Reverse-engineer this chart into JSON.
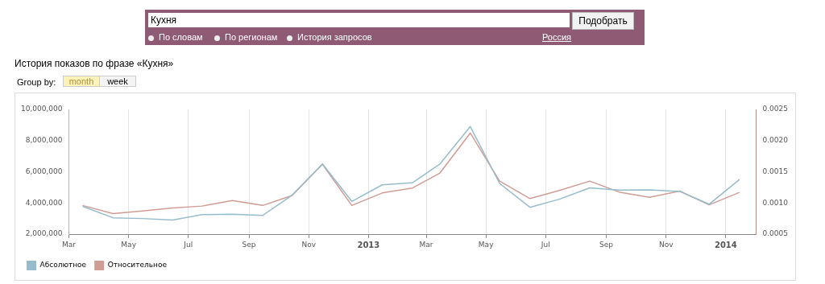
{
  "chart_data": {
    "type": "line",
    "title": "История показов по фразе «Кухня»",
    "annotations": [
      "Кухня",
      "Подобрать",
      "По словам",
      "По регионам",
      "История запросов",
      "Россия",
      "Group by:",
      "month",
      "week"
    ],
    "x": [
      "2012-03-15",
      "2012-04-15",
      "2012-05-15",
      "2012-06-15",
      "2012-07-15",
      "2012-08-15",
      "2012-09-15",
      "2012-10-15",
      "2012-11-15",
      "2012-12-15",
      "2013-01-15",
      "2013-02-15",
      "2013-03-15",
      "2013-04-15",
      "2013-05-15",
      "2013-06-15",
      "2013-07-15",
      "2013-08-15",
      "2013-09-15",
      "2013-10-15",
      "2013-11-15",
      "2013-12-15",
      "2014-01-15"
    ],
    "series": [
      {
        "name": "Абсолютное",
        "color": "#96bccc",
        "values": [
          3780000,
          3050000,
          3000000,
          2900000,
          3250000,
          3280000,
          3200000,
          4500000,
          6500000,
          4100000,
          5160000,
          5300000,
          6500000,
          8900000,
          5250000,
          3720000,
          4240000,
          4970000,
          4820000,
          4840000,
          4740000,
          3920000,
          5500000
        ]
      },
      {
        "name": "Относительное",
        "color": "#cf9d95",
        "axis": "y2",
        "values": [
          0.00096,
          0.00083,
          0.00087,
          0.00092,
          0.00095,
          0.00104,
          0.00096,
          0.00112,
          0.00162,
          0.00096,
          0.00116,
          0.00124,
          0.00148,
          0.00212,
          0.00135,
          0.00107,
          0.0012,
          0.00135,
          0.00117,
          0.00109,
          0.00119,
          0.00097,
          0.00117
        ]
      }
    ],
    "xlim": [
      "2012-03-01",
      "2014-02-01"
    ],
    "xticks": [
      {
        "value": "2012-03-01",
        "label": "Mar"
      },
      {
        "value": "2012-05-01",
        "label": "May"
      },
      {
        "value": "2012-07-01",
        "label": "Jul"
      },
      {
        "value": "2012-09-01",
        "label": "Sep"
      },
      {
        "value": "2012-11-01",
        "label": "Nov"
      },
      {
        "value": "2013-01-01",
        "label": "2013"
      },
      {
        "value": "2013-03-01",
        "label": "Mar"
      },
      {
        "value": "2013-05-01",
        "label": "May"
      },
      {
        "value": "2013-07-01",
        "label": "Jul"
      },
      {
        "value": "2013-09-01",
        "label": "Sep"
      },
      {
        "value": "2013-11-01",
        "label": "Nov"
      },
      {
        "value": "2014-01-01",
        "label": "2014"
      }
    ],
    "ylim": [
      2000000,
      10000000
    ],
    "yticks": [
      {
        "value": 2000000,
        "label": "2,000,000"
      },
      {
        "value": 4000000,
        "label": "4,000,000"
      },
      {
        "value": 6000000,
        "label": "6,000,000"
      },
      {
        "value": 8000000,
        "label": "8,000,000"
      },
      {
        "value": 10000000,
        "label": "10,000,000"
      }
    ],
    "y2lim": [
      0.0005,
      0.0025
    ],
    "y2ticks": [
      {
        "value": 0.0005,
        "label": "0.0005"
      },
      {
        "value": 0.001,
        "label": "0.0010"
      },
      {
        "value": 0.0015,
        "label": "0.0015"
      },
      {
        "value": 0.002,
        "label": "0.0020"
      },
      {
        "value": 0.0025,
        "label": "0.0025"
      }
    ],
    "grid": "x",
    "legend": "bottom left",
    "marker": "none",
    "line_style": "solid"
  }
}
